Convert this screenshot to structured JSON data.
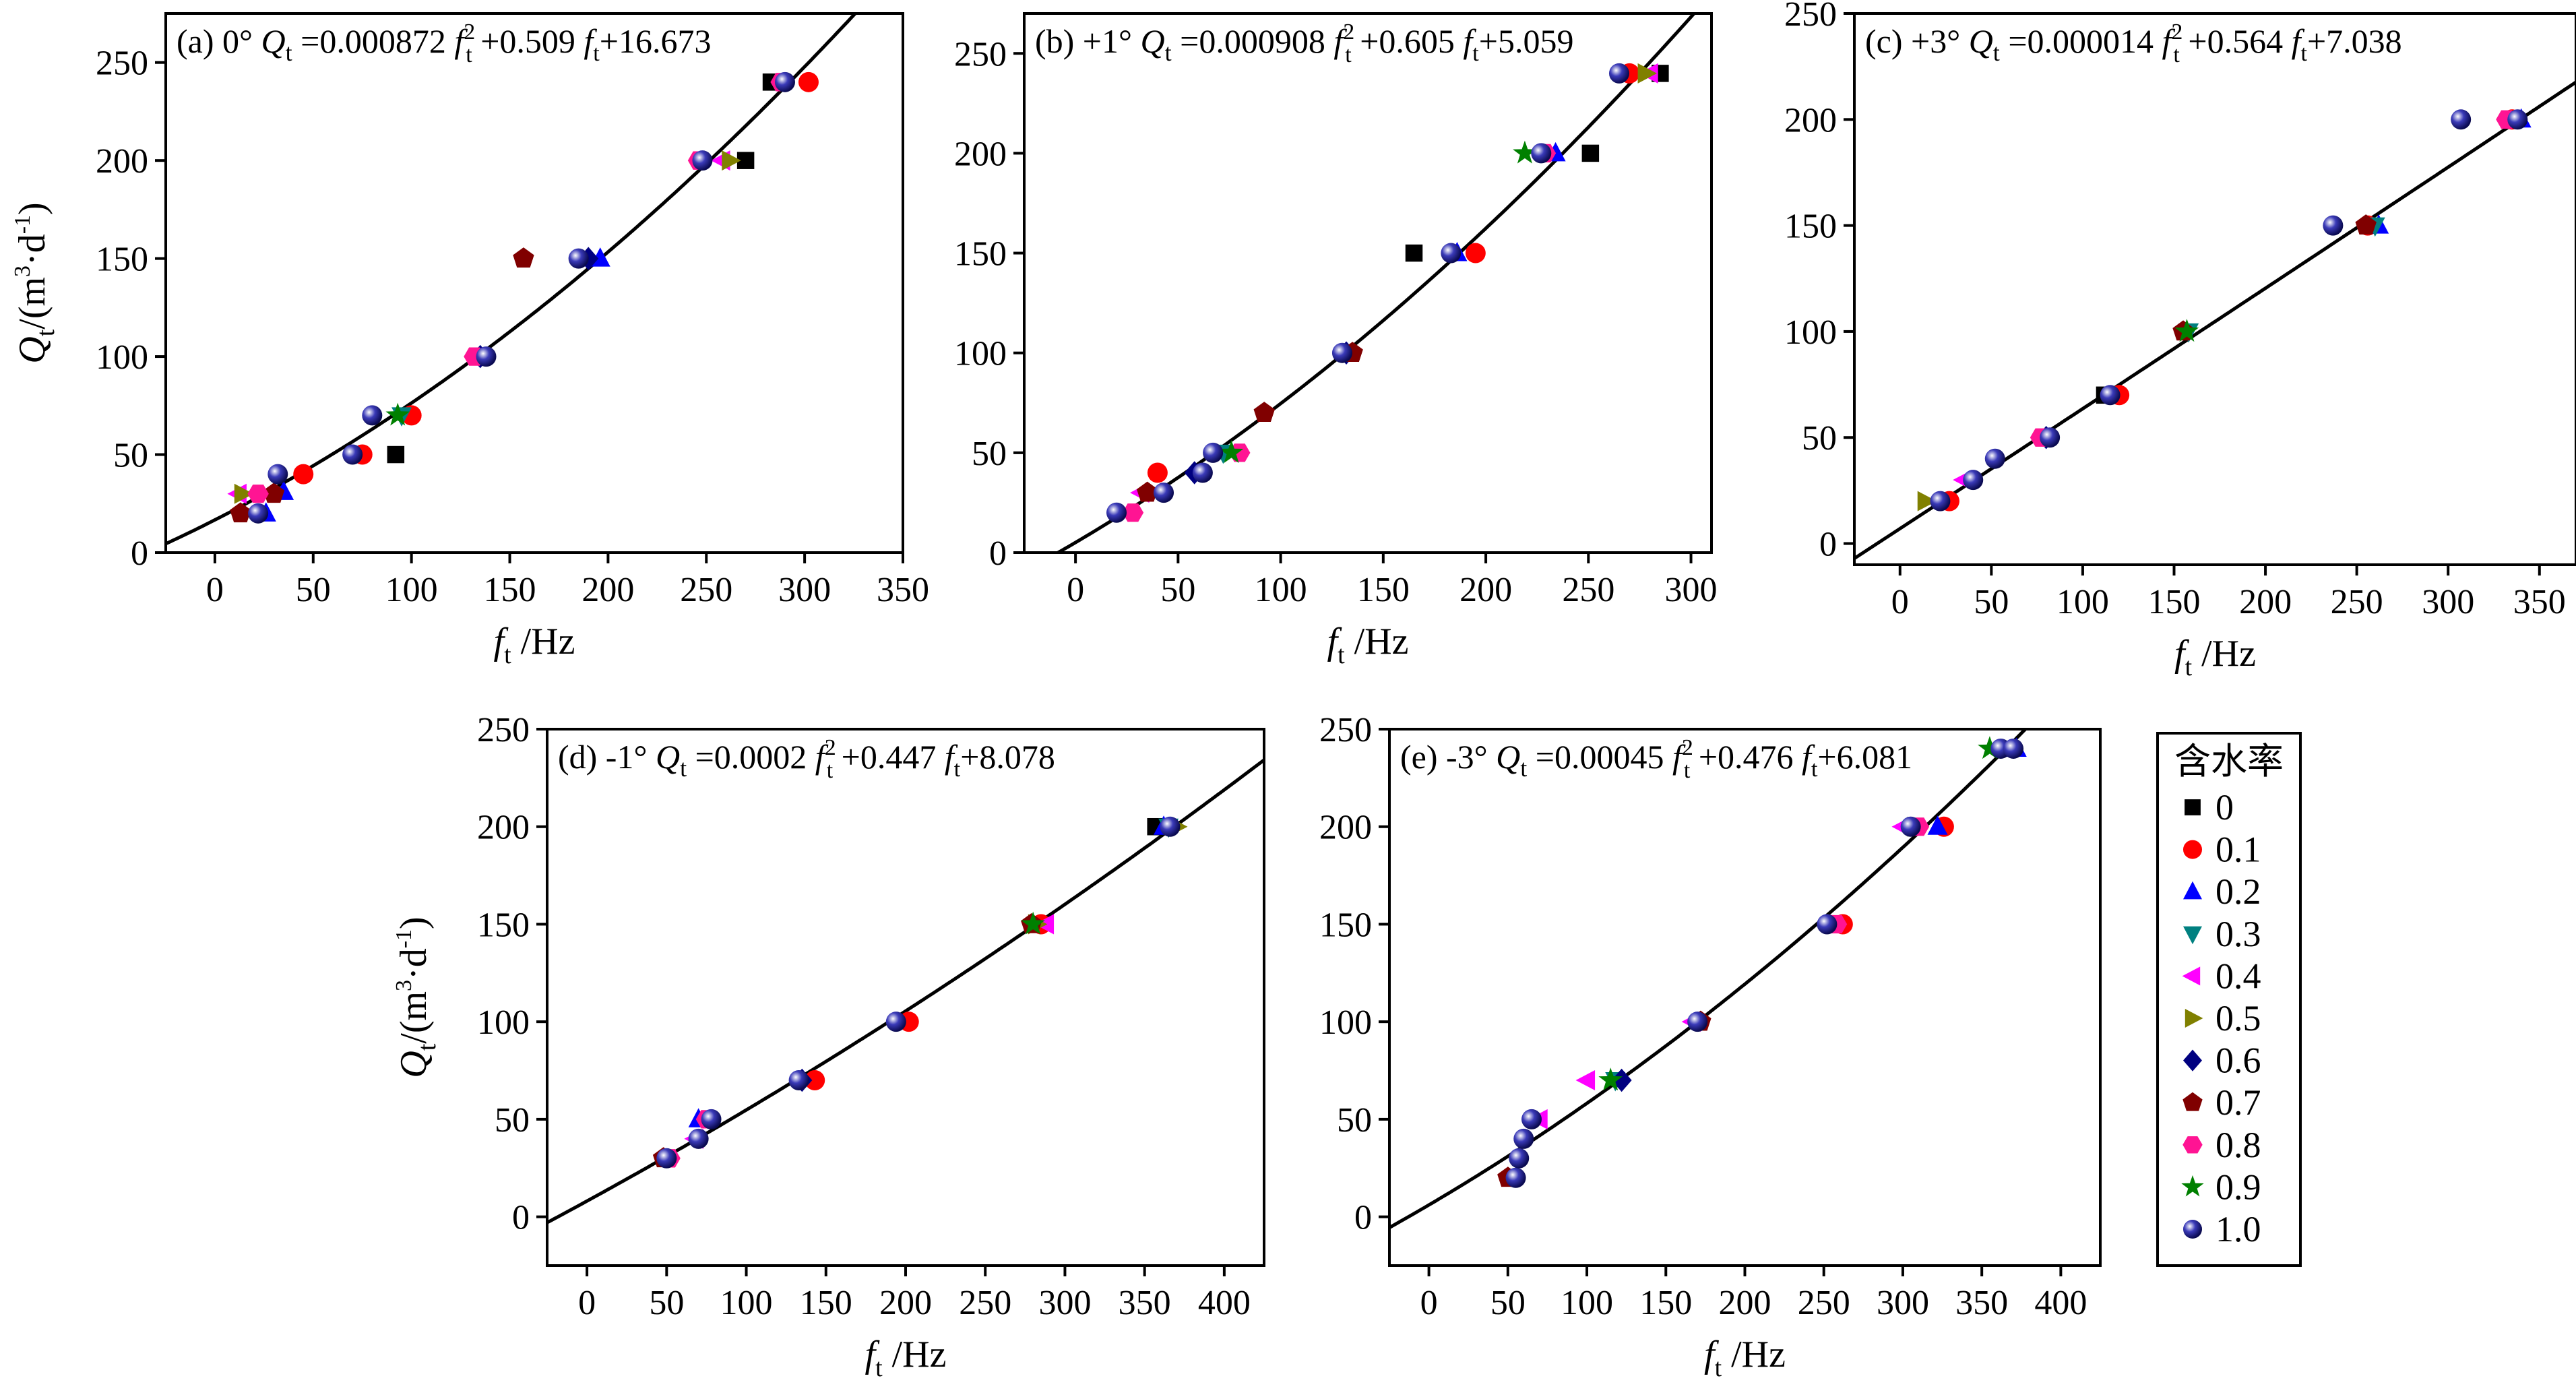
{
  "chart_data": [
    {
      "type": "scatter",
      "panel_label": "(a) 0°",
      "formula": {
        "a": "0.000872",
        "b": "0.509",
        "c": "16.673"
      },
      "fit": {
        "a": 0.000872,
        "b": 0.509,
        "c": 16.673
      },
      "xlabel": {
        "sym": "f",
        "sub": "t",
        "unit": "/Hz"
      },
      "ylabel": {
        "sym": "Q",
        "sub": "t",
        "unit_pre": "/(m",
        "sup1": "3",
        "unit_mid": "·d",
        "sup2": "-1",
        "unit_post": ")"
      },
      "xlim": [
        -25,
        350
      ],
      "ylim": [
        0,
        275
      ],
      "xticks": [
        0,
        50,
        100,
        150,
        200,
        250,
        300,
        350
      ],
      "yticks": [
        0,
        50,
        100,
        150,
        200,
        250
      ],
      "points": [
        {
          "s": 0,
          "x": 92,
          "y": 50
        },
        {
          "s": 0,
          "x": 270,
          "y": 200
        },
        {
          "s": 0,
          "x": 283,
          "y": 240
        },
        {
          "s": 1,
          "x": 45,
          "y": 40
        },
        {
          "s": 1,
          "x": 75,
          "y": 50
        },
        {
          "s": 1,
          "x": 100,
          "y": 70
        },
        {
          "s": 1,
          "x": 302,
          "y": 240
        },
        {
          "s": 2,
          "x": 26,
          "y": 20
        },
        {
          "s": 2,
          "x": 35,
          "y": 31
        },
        {
          "s": 2,
          "x": 196,
          "y": 150
        },
        {
          "s": 3,
          "x": 95,
          "y": 70
        },
        {
          "s": 4,
          "x": 12,
          "y": 30
        },
        {
          "s": 4,
          "x": 258,
          "y": 200
        },
        {
          "s": 5,
          "x": 14,
          "y": 30
        },
        {
          "s": 5,
          "x": 262,
          "y": 200
        },
        {
          "s": 6,
          "x": 135,
          "y": 100
        },
        {
          "s": 6,
          "x": 190,
          "y": 150
        },
        {
          "s": 7,
          "x": 13,
          "y": 20
        },
        {
          "s": 7,
          "x": 30,
          "y": 30
        },
        {
          "s": 7,
          "x": 157,
          "y": 150
        },
        {
          "s": 8,
          "x": 22,
          "y": 30
        },
        {
          "s": 8,
          "x": 132,
          "y": 100
        },
        {
          "s": 8,
          "x": 246,
          "y": 200
        },
        {
          "s": 8,
          "x": 288,
          "y": 240
        },
        {
          "s": 9,
          "x": 93,
          "y": 70
        },
        {
          "s": 10,
          "x": 22,
          "y": 20
        },
        {
          "s": 10,
          "x": 32,
          "y": 40
        },
        {
          "s": 10,
          "x": 70,
          "y": 50
        },
        {
          "s": 10,
          "x": 80,
          "y": 70
        },
        {
          "s": 10,
          "x": 138,
          "y": 100
        },
        {
          "s": 10,
          "x": 185,
          "y": 150
        },
        {
          "s": 10,
          "x": 248,
          "y": 200
        },
        {
          "s": 10,
          "x": 290,
          "y": 240
        }
      ]
    },
    {
      "type": "scatter",
      "panel_label": "(b) +1°",
      "formula": {
        "a": "0.000908",
        "b": "0.605",
        "c": "5.059"
      },
      "fit": {
        "a": 0.000908,
        "b": 0.605,
        "c": 5.059
      },
      "xlabel": {
        "sym": "f",
        "sub": "t",
        "unit": "/Hz"
      },
      "xlim": [
        -25,
        310
      ],
      "ylim": [
        0,
        270
      ],
      "xticks": [
        0,
        50,
        100,
        150,
        200,
        250,
        300
      ],
      "yticks": [
        0,
        50,
        100,
        150,
        200,
        250
      ],
      "points": [
        {
          "s": 0,
          "x": 165,
          "y": 150
        },
        {
          "s": 0,
          "x": 251,
          "y": 200
        },
        {
          "s": 0,
          "x": 285,
          "y": 240
        },
        {
          "s": 1,
          "x": 40,
          "y": 40
        },
        {
          "s": 1,
          "x": 195,
          "y": 150
        },
        {
          "s": 1,
          "x": 270,
          "y": 240
        },
        {
          "s": 2,
          "x": 234,
          "y": 200
        },
        {
          "s": 2,
          "x": 186,
          "y": 150
        },
        {
          "s": 3,
          "x": 72,
          "y": 50
        },
        {
          "s": 4,
          "x": 32,
          "y": 30
        },
        {
          "s": 4,
          "x": 280,
          "y": 240
        },
        {
          "s": 5,
          "x": 278,
          "y": 240
        },
        {
          "s": 6,
          "x": 58,
          "y": 40
        },
        {
          "s": 6,
          "x": 132,
          "y": 100
        },
        {
          "s": 7,
          "x": 35,
          "y": 30
        },
        {
          "s": 7,
          "x": 92,
          "y": 70
        },
        {
          "s": 7,
          "x": 135,
          "y": 100
        },
        {
          "s": 8,
          "x": 28,
          "y": 20
        },
        {
          "s": 8,
          "x": 80,
          "y": 50
        },
        {
          "s": 8,
          "x": 229,
          "y": 200
        },
        {
          "s": 9,
          "x": 219,
          "y": 200
        },
        {
          "s": 9,
          "x": 76,
          "y": 50
        },
        {
          "s": 10,
          "x": 20,
          "y": 20
        },
        {
          "s": 10,
          "x": 43,
          "y": 30
        },
        {
          "s": 10,
          "x": 62,
          "y": 40
        },
        {
          "s": 10,
          "x": 67,
          "y": 50
        },
        {
          "s": 10,
          "x": 130,
          "y": 100
        },
        {
          "s": 10,
          "x": 183,
          "y": 150
        },
        {
          "s": 10,
          "x": 227,
          "y": 200
        },
        {
          "s": 10,
          "x": 265,
          "y": 240
        }
      ]
    },
    {
      "type": "scatter",
      "panel_label": "(c) +3°",
      "formula": {
        "a": "0.000014",
        "b": "0.564",
        "c": "7.038"
      },
      "fit": {
        "a": 1.4e-05,
        "b": 0.564,
        "c": 7.038
      },
      "xlabel": {
        "sym": "f",
        "sub": "t",
        "unit": "/Hz"
      },
      "xlim": [
        -25,
        370
      ],
      "ylim": [
        -10,
        250
      ],
      "xticks": [
        0,
        50,
        100,
        150,
        200,
        250,
        300,
        350
      ],
      "yticks": [
        0,
        50,
        100,
        150,
        200,
        250
      ],
      "points": [
        {
          "s": 0,
          "x": 112,
          "y": 70
        },
        {
          "s": 1,
          "x": 27,
          "y": 20
        },
        {
          "s": 1,
          "x": 120,
          "y": 70
        },
        {
          "s": 1,
          "x": 256,
          "y": 150
        },
        {
          "s": 1,
          "x": 335,
          "y": 200
        },
        {
          "s": 2,
          "x": 262,
          "y": 150
        },
        {
          "s": 2,
          "x": 340,
          "y": 200
        },
        {
          "s": 3,
          "x": 158,
          "y": 100
        },
        {
          "s": 3,
          "x": 260,
          "y": 150
        },
        {
          "s": 4,
          "x": 35,
          "y": 30
        },
        {
          "s": 5,
          "x": 14,
          "y": 20
        },
        {
          "s": 6,
          "x": 80,
          "y": 50
        },
        {
          "s": 7,
          "x": 155,
          "y": 100
        },
        {
          "s": 7,
          "x": 255,
          "y": 150
        },
        {
          "s": 8,
          "x": 332,
          "y": 200
        },
        {
          "s": 8,
          "x": 77,
          "y": 50
        },
        {
          "s": 9,
          "x": 157,
          "y": 100
        },
        {
          "s": 10,
          "x": 22,
          "y": 20
        },
        {
          "s": 10,
          "x": 40,
          "y": 30
        },
        {
          "s": 10,
          "x": 52,
          "y": 40
        },
        {
          "s": 10,
          "x": 82,
          "y": 50
        },
        {
          "s": 10,
          "x": 115,
          "y": 70
        },
        {
          "s": 10,
          "x": 237,
          "y": 150
        },
        {
          "s": 10,
          "x": 307,
          "y": 200
        },
        {
          "s": 10,
          "x": 338,
          "y": 200
        }
      ]
    },
    {
      "type": "scatter",
      "panel_label": "(d) -1°",
      "formula": {
        "a": "0.0002",
        "b": "0.447",
        "c": "8.078"
      },
      "fit": {
        "a": 0.0002,
        "b": 0.447,
        "c": 8.078
      },
      "xlabel": {
        "sym": "f",
        "sub": "t",
        "unit": "/Hz"
      },
      "ylabel": {
        "sym": "Q",
        "sub": "t",
        "unit_pre": "/(m",
        "sup1": "3",
        "unit_mid": "·d",
        "sup2": "-1",
        "unit_post": ")"
      },
      "xlim": [
        -25,
        425
      ],
      "ylim": [
        -25,
        250
      ],
      "xticks": [
        0,
        50,
        100,
        150,
        200,
        250,
        300,
        350,
        400
      ],
      "yticks": [
        0,
        50,
        100,
        150,
        200,
        250
      ],
      "points": [
        {
          "s": 0,
          "x": 357,
          "y": 200
        },
        {
          "s": 1,
          "x": 143,
          "y": 70
        },
        {
          "s": 1,
          "x": 202,
          "y": 100
        },
        {
          "s": 1,
          "x": 285,
          "y": 150
        },
        {
          "s": 2,
          "x": 70,
          "y": 50
        },
        {
          "s": 2,
          "x": 362,
          "y": 200
        },
        {
          "s": 3,
          "x": 365,
          "y": 200
        },
        {
          "s": 4,
          "x": 68,
          "y": 40
        },
        {
          "s": 4,
          "x": 288,
          "y": 150
        },
        {
          "s": 5,
          "x": 370,
          "y": 200
        },
        {
          "s": 5,
          "x": 282,
          "y": 150
        },
        {
          "s": 6,
          "x": 135,
          "y": 70
        },
        {
          "s": 7,
          "x": 48,
          "y": 30
        },
        {
          "s": 7,
          "x": 279,
          "y": 150
        },
        {
          "s": 8,
          "x": 52,
          "y": 30
        },
        {
          "s": 8,
          "x": 75,
          "y": 50
        },
        {
          "s": 9,
          "x": 280,
          "y": 150
        },
        {
          "s": 10,
          "x": 50,
          "y": 30
        },
        {
          "s": 10,
          "x": 70,
          "y": 40
        },
        {
          "s": 10,
          "x": 78,
          "y": 50
        },
        {
          "s": 10,
          "x": 133,
          "y": 70
        },
        {
          "s": 10,
          "x": 194,
          "y": 100
        },
        {
          "s": 10,
          "x": 366,
          "y": 200
        }
      ]
    },
    {
      "type": "scatter",
      "panel_label": "(e) -3°",
      "formula": {
        "a": "0.00045",
        "b": "0.476",
        "c": "6.081"
      },
      "fit": {
        "a": 0.00045,
        "b": 0.476,
        "c": 6.081
      },
      "xlabel": {
        "sym": "f",
        "sub": "t",
        "unit": "/Hz"
      },
      "xlim": [
        -25,
        425
      ],
      "ylim": [
        -25,
        250
      ],
      "xticks": [
        0,
        50,
        100,
        150,
        200,
        250,
        300,
        350,
        400
      ],
      "yticks": [
        0,
        50,
        100,
        150,
        200,
        250
      ],
      "points": [
        {
          "s": 1,
          "x": 262,
          "y": 150
        },
        {
          "s": 1,
          "x": 326,
          "y": 200
        },
        {
          "s": 2,
          "x": 322,
          "y": 200
        },
        {
          "s": 2,
          "x": 372,
          "y": 240
        },
        {
          "s": 3,
          "x": 118,
          "y": 70
        },
        {
          "s": 4,
          "x": 100,
          "y": 70
        },
        {
          "s": 4,
          "x": 70,
          "y": 50
        },
        {
          "s": 4,
          "x": 167,
          "y": 100
        },
        {
          "s": 4,
          "x": 300,
          "y": 200
        },
        {
          "s": 5,
          "x": 308,
          "y": 200
        },
        {
          "s": 6,
          "x": 122,
          "y": 70
        },
        {
          "s": 7,
          "x": 50,
          "y": 20
        },
        {
          "s": 7,
          "x": 172,
          "y": 100
        },
        {
          "s": 8,
          "x": 258,
          "y": 150
        },
        {
          "s": 8,
          "x": 310,
          "y": 200
        },
        {
          "s": 9,
          "x": 355,
          "y": 240
        },
        {
          "s": 9,
          "x": 115,
          "y": 70
        },
        {
          "s": 10,
          "x": 55,
          "y": 20
        },
        {
          "s": 10,
          "x": 57,
          "y": 30
        },
        {
          "s": 10,
          "x": 60,
          "y": 40
        },
        {
          "s": 10,
          "x": 65,
          "y": 50
        },
        {
          "s": 10,
          "x": 170,
          "y": 100
        },
        {
          "s": 10,
          "x": 252,
          "y": 150
        },
        {
          "s": 10,
          "x": 305,
          "y": 200
        },
        {
          "s": 10,
          "x": 362,
          "y": 240
        },
        {
          "s": 10,
          "x": 370,
          "y": 240
        }
      ]
    }
  ],
  "legend": {
    "title": "含水率",
    "entries": [
      {
        "label": "0",
        "color": "#000000",
        "marker": "square"
      },
      {
        "label": "0.1",
        "color": "#ff0000",
        "marker": "circle"
      },
      {
        "label": "0.2",
        "color": "#0000ff",
        "marker": "triangle-up"
      },
      {
        "label": "0.3",
        "color": "#008080",
        "marker": "triangle-down"
      },
      {
        "label": "0.4",
        "color": "#ff00ff",
        "marker": "triangle-left"
      },
      {
        "label": "0.5",
        "color": "#808000",
        "marker": "triangle-right"
      },
      {
        "label": "0.6",
        "color": "#000080",
        "marker": "diamond"
      },
      {
        "label": "0.7",
        "color": "#800000",
        "marker": "pentagon"
      },
      {
        "label": "0.8",
        "color": "#ff1493",
        "marker": "hexagon"
      },
      {
        "label": "0.9",
        "color": "#008000",
        "marker": "star"
      },
      {
        "label": "1.0",
        "color": "#1a1a8c",
        "marker": "sphere"
      }
    ]
  }
}
